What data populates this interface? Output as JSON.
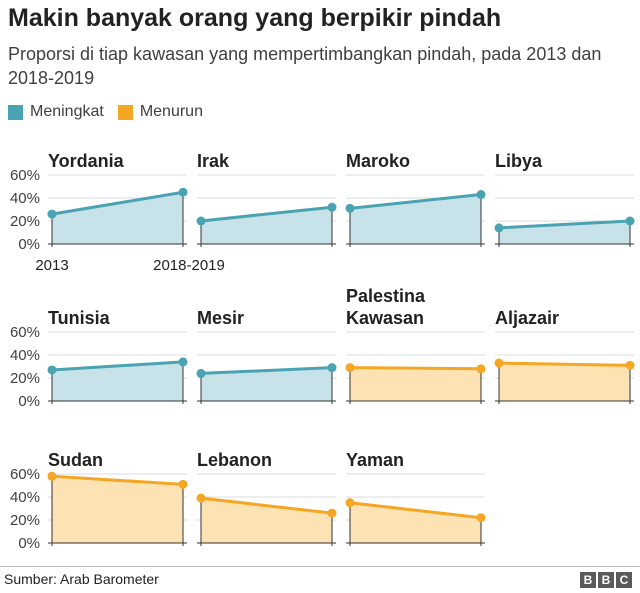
{
  "header": {
    "title": "Makin banyak orang yang berpikir pindah",
    "subtitle": "Proporsi di tiap kawasan yang mempertimbangkan pindah, pada 2013 dan 2018-2019"
  },
  "legend": {
    "increase_label": "Meningkat",
    "decrease_label": "Menurun"
  },
  "colors": {
    "increase_line": "#4aa3b2",
    "increase_fill": "#c7e2e8",
    "decrease_line": "#f5a623",
    "decrease_fill": "#fde2b4",
    "axis": "#333333",
    "grid": "#dddddd"
  },
  "chart_data": {
    "type": "area",
    "x": [
      "2013",
      "2018-2019"
    ],
    "y_ticks": [
      "60%",
      "40%",
      "20%",
      "0%"
    ],
    "ylim": [
      0,
      60
    ],
    "panels": [
      {
        "name": "Yordania",
        "values": [
          26,
          45
        ],
        "trend": "increase"
      },
      {
        "name": "Irak",
        "values": [
          20,
          32
        ],
        "trend": "increase"
      },
      {
        "name": "Maroko",
        "values": [
          31,
          43
        ],
        "trend": "increase"
      },
      {
        "name": "Libya",
        "values": [
          14,
          20
        ],
        "trend": "increase"
      },
      {
        "name": "Tunisia",
        "values": [
          27,
          34
        ],
        "trend": "increase"
      },
      {
        "name": "Mesir",
        "values": [
          24,
          29
        ],
        "trend": "increase"
      },
      {
        "name": "Palestina Kawasan",
        "values": [
          29,
          28
        ],
        "trend": "decrease"
      },
      {
        "name": "Aljazair",
        "values": [
          33,
          31
        ],
        "trend": "decrease"
      },
      {
        "name": "Sudan",
        "values": [
          58,
          51
        ],
        "trend": "decrease"
      },
      {
        "name": "Lebanon",
        "values": [
          39,
          26
        ],
        "trend": "decrease"
      },
      {
        "name": "Yaman",
        "values": [
          35,
          22
        ],
        "trend": "decrease"
      }
    ]
  },
  "footer": {
    "source": "Sumber: Arab Barometer",
    "logo_letters": [
      "B",
      "B",
      "C"
    ]
  }
}
